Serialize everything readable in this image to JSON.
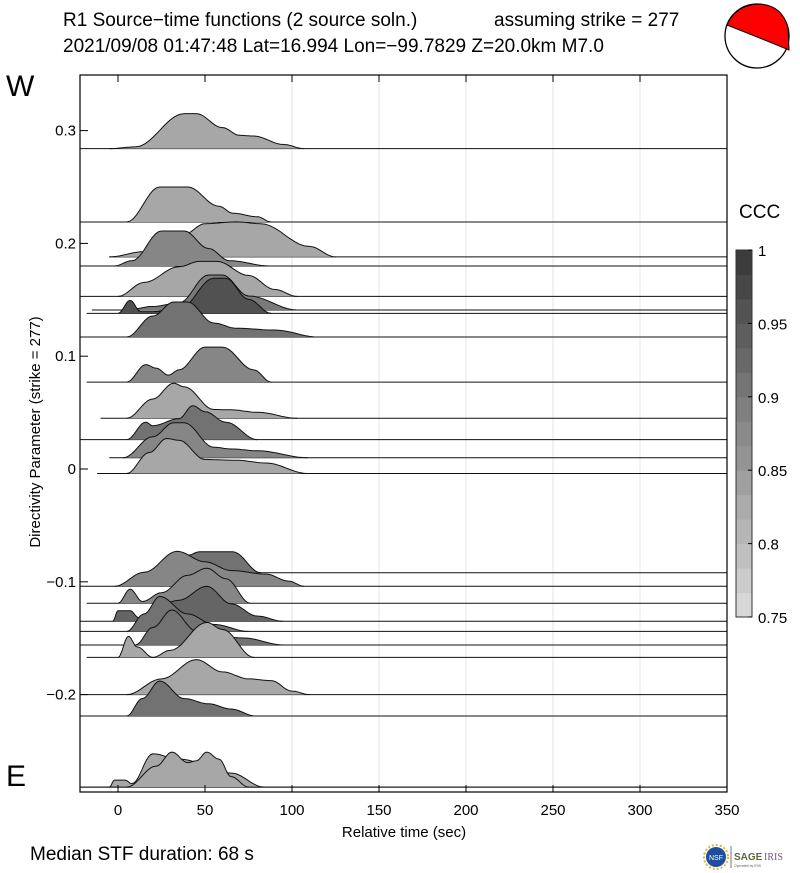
{
  "chart_data": {
    "type": "area",
    "title": "R1 Source−time functions (2 source soln.)",
    "title_right": "assuming strike = 277",
    "subtitle": "2021/09/08 01:47:48  Lat=16.994 Lon=−99.7829  Z=20.0km  M7.0",
    "xlabel": "Relative time (sec)",
    "ylabel": "Directivity Parameter (strike = 277)",
    "xlim": [
      -22,
      350
    ],
    "ylim": [
      -0.287,
      0.35
    ],
    "x_ticks": [
      "0",
      "50",
      "100",
      "150",
      "200",
      "250",
      "300",
      "350"
    ],
    "x_tick_values": [
      0,
      50,
      100,
      150,
      200,
      250,
      300,
      350
    ],
    "y_ticks": [
      "0.3",
      "0.2",
      "0.1",
      "0",
      "−0.1",
      "−0.2"
    ],
    "y_tick_values": [
      0.3,
      0.2,
      0.1,
      0,
      -0.1,
      -0.2
    ],
    "grid": "vertical",
    "top_label": "W",
    "bottom_label": "E",
    "colorbar": {
      "title": "CCC",
      "range": [
        0.75,
        1
      ],
      "ticks": [
        "1",
        "0.95",
        "0.9",
        "0.85",
        "0.8",
        "0.75"
      ],
      "tick_values": [
        1,
        0.95,
        0.9,
        0.85,
        0.8,
        0.75
      ],
      "color_low": "#dcdcdc",
      "color_high": "#373737"
    },
    "note": "Traces: baseline = directivity parameter, shape = [time (s), relative amplitude]",
    "traces": [
      {
        "d": 0.284,
        "from": -22,
        "ccc": 0.83,
        "shape": [
          [
            -5,
            0
          ],
          [
            10,
            0.05
          ],
          [
            38,
            1
          ],
          [
            45,
            1
          ],
          [
            60,
            0.6
          ],
          [
            70,
            0.38
          ],
          [
            78,
            0.36
          ],
          [
            95,
            0.12
          ],
          [
            107,
            0
          ]
        ]
      },
      {
        "d": 0.219,
        "from": -22,
        "ccc": 0.83,
        "shape": [
          [
            5,
            0
          ],
          [
            24,
            1
          ],
          [
            40,
            1
          ],
          [
            58,
            0.45
          ],
          [
            66,
            0.25
          ],
          [
            80,
            0.15
          ],
          [
            88,
            0
          ]
        ]
      },
      {
        "d": 0.188,
        "from": -5,
        "ccc": 0.83,
        "shape": [
          [
            -5,
            0
          ],
          [
            15,
            0.15
          ],
          [
            38,
            0.65
          ],
          [
            50,
            0.95
          ],
          [
            68,
            1
          ],
          [
            82,
            0.95
          ],
          [
            110,
            0.3
          ],
          [
            125,
            0
          ]
        ]
      },
      {
        "d": 0.18,
        "from": -22,
        "ccc": 0.88,
        "shape": [
          [
            -2,
            0
          ],
          [
            8,
            0.15
          ],
          [
            25,
            1
          ],
          [
            38,
            1
          ],
          [
            52,
            0.5
          ],
          [
            64,
            0.15
          ],
          [
            87,
            0
          ]
        ]
      },
      {
        "d": 0.153,
        "from": -22,
        "ccc": 0.83,
        "shape": [
          [
            0,
            0
          ],
          [
            15,
            0.4
          ],
          [
            35,
            0.85
          ],
          [
            47,
            1
          ],
          [
            57,
            1
          ],
          [
            75,
            0.6
          ],
          [
            90,
            0.2
          ],
          [
            103,
            0
          ]
        ]
      },
      {
        "d": 0.141,
        "from": -15,
        "ccc": 0.9,
        "shape": [
          [
            5,
            0
          ],
          [
            20,
            0.1
          ],
          [
            35,
            0.2
          ],
          [
            52,
            1
          ],
          [
            60,
            1
          ],
          [
            75,
            0.4
          ],
          [
            103,
            0
          ]
        ]
      },
      {
        "d": 0.138,
        "from": -18,
        "ccc": 0.96,
        "shape": [
          [
            0,
            0
          ],
          [
            7,
            0.37
          ],
          [
            13,
            0.05
          ],
          [
            20,
            0.05
          ],
          [
            35,
            0.1
          ],
          [
            55,
            1
          ],
          [
            62,
            1
          ],
          [
            75,
            0.4
          ],
          [
            88,
            0
          ]
        ]
      },
      {
        "d": 0.117,
        "from": -22,
        "ccc": 0.91,
        "shape": [
          [
            5,
            0
          ],
          [
            20,
            0.6
          ],
          [
            32,
            1
          ],
          [
            40,
            1
          ],
          [
            55,
            0.4
          ],
          [
            68,
            0.25
          ],
          [
            90,
            0.2
          ],
          [
            115,
            0
          ]
        ]
      },
      {
        "d": 0.077,
        "from": -18,
        "ccc": 0.88,
        "shape": [
          [
            5,
            0
          ],
          [
            16,
            0.5
          ],
          [
            22,
            0.4
          ],
          [
            29,
            0.2
          ],
          [
            35,
            0.35
          ],
          [
            50,
            1
          ],
          [
            60,
            1
          ],
          [
            78,
            0.35
          ],
          [
            88,
            0
          ]
        ]
      },
      {
        "d": 0.045,
        "from": -10,
        "ccc": 0.83,
        "shape": [
          [
            5,
            0
          ],
          [
            20,
            0.55
          ],
          [
            32,
            1
          ],
          [
            38,
            0.9
          ],
          [
            55,
            0.25
          ],
          [
            65,
            0.24
          ],
          [
            80,
            0.17
          ],
          [
            103,
            0
          ]
        ]
      },
      {
        "d": 0.026,
        "from": -22,
        "ccc": 0.91,
        "shape": [
          [
            5,
            0
          ],
          [
            16,
            0.5
          ],
          [
            20,
            0.4
          ],
          [
            35,
            0.6
          ],
          [
            43,
            0.97
          ],
          [
            50,
            0.8
          ],
          [
            62,
            0.5
          ],
          [
            80,
            0
          ]
        ]
      },
      {
        "d": 0.01,
        "from": -5,
        "ccc": 0.88,
        "shape": [
          [
            3,
            0
          ],
          [
            20,
            0.6
          ],
          [
            32,
            1
          ],
          [
            38,
            1
          ],
          [
            55,
            0.3
          ],
          [
            65,
            0.25
          ],
          [
            80,
            0.2
          ],
          [
            109,
            0
          ]
        ]
      },
      {
        "d": -0.004,
        "from": -12,
        "ccc": 0.83,
        "shape": [
          [
            5,
            0
          ],
          [
            18,
            0.6
          ],
          [
            28,
            1
          ],
          [
            35,
            0.95
          ],
          [
            50,
            0.4
          ],
          [
            68,
            0.38
          ],
          [
            85,
            0.3
          ],
          [
            109,
            0
          ]
        ]
      },
      {
        "d": -0.092,
        "from": 27,
        "ccc": 0.91,
        "shape": [
          [
            27,
            0
          ],
          [
            40,
            0.5
          ],
          [
            47,
            0.6
          ],
          [
            66,
            0.6
          ],
          [
            82,
            0
          ]
        ]
      },
      {
        "d": -0.104,
        "from": -22,
        "ccc": 0.88,
        "shape": [
          [
            -2,
            0
          ],
          [
            15,
            0.4
          ],
          [
            34,
            1
          ],
          [
            50,
            0.7
          ],
          [
            65,
            0.45
          ],
          [
            85,
            0.35
          ],
          [
            98,
            0.15
          ],
          [
            107,
            0
          ]
        ]
      },
      {
        "d": -0.119,
        "from": -18,
        "ccc": 0.88,
        "shape": [
          [
            0,
            0
          ],
          [
            7,
            0.4
          ],
          [
            14,
            0.05
          ],
          [
            25,
            0.3
          ],
          [
            40,
            0.8
          ],
          [
            51,
            1
          ],
          [
            62,
            0.7
          ],
          [
            76,
            0
          ]
        ]
      },
      {
        "d": -0.135,
        "from": -22,
        "ccc": 0.93,
        "shape": [
          [
            -3,
            0
          ],
          [
            0,
            0.3
          ],
          [
            7,
            0.3
          ],
          [
            12,
            0.1
          ],
          [
            35,
            0.6
          ],
          [
            51,
            1
          ],
          [
            65,
            0.5
          ],
          [
            80,
            0.15
          ],
          [
            95,
            0
          ]
        ]
      },
      {
        "d": -0.144,
        "from": -22,
        "ccc": 0.91,
        "shape": [
          [
            5,
            0
          ],
          [
            15,
            0.5
          ],
          [
            24,
            1
          ],
          [
            40,
            0.5
          ],
          [
            55,
            0.2
          ],
          [
            75,
            0
          ]
        ]
      },
      {
        "d": -0.156,
        "from": -22,
        "ccc": 0.91,
        "shape": [
          [
            10,
            0
          ],
          [
            20,
            0.5
          ],
          [
            31,
            1
          ],
          [
            45,
            0.4
          ],
          [
            57,
            0.25
          ],
          [
            72,
            0.2
          ],
          [
            95,
            0
          ]
        ]
      },
      {
        "d": -0.167,
        "from": -18,
        "ccc": 0.83,
        "shape": [
          [
            0,
            0
          ],
          [
            6,
            0.6
          ],
          [
            11,
            0.3
          ],
          [
            20,
            0
          ],
          [
            30,
            0.2
          ],
          [
            51,
            1
          ],
          [
            60,
            0.8
          ],
          [
            78,
            0
          ]
        ]
      },
      {
        "d": -0.2,
        "from": -22,
        "ccc": 0.83,
        "shape": [
          [
            5,
            0
          ],
          [
            25,
            0.45
          ],
          [
            45,
            1
          ],
          [
            60,
            0.65
          ],
          [
            75,
            0.45
          ],
          [
            88,
            0.4
          ],
          [
            100,
            0.1
          ],
          [
            110,
            0
          ]
        ]
      },
      {
        "d": -0.219,
        "from": -22,
        "ccc": 0.91,
        "shape": [
          [
            5,
            0
          ],
          [
            14,
            0.5
          ],
          [
            24,
            1
          ],
          [
            38,
            0.5
          ],
          [
            52,
            0.35
          ],
          [
            65,
            0.2
          ],
          [
            79,
            0
          ]
        ]
      },
      {
        "d": -0.282,
        "from": -22,
        "ccc": 0.83,
        "shape": [
          [
            -5,
            0
          ],
          [
            -2,
            0.2
          ],
          [
            4,
            0.2
          ],
          [
            8,
            0.1
          ],
          [
            20,
            0.95
          ],
          [
            35,
            0.8
          ],
          [
            65,
            0.4
          ],
          [
            84,
            0
          ]
        ]
      },
      {
        "d": -0.282,
        "from": -22,
        "ccc": 0.83,
        "shape": [
          [
            5,
            0
          ],
          [
            22,
            0.6
          ],
          [
            31,
            1
          ],
          [
            40,
            0.7
          ],
          [
            45,
            0.75
          ],
          [
            51,
            1
          ],
          [
            58,
            0.8
          ],
          [
            65,
            0.3
          ],
          [
            75,
            0
          ]
        ]
      }
    ]
  },
  "footer": {
    "median": "Median STF duration: 68 s",
    "logo": "NSF SAGE IRIS Operated by IRIS"
  },
  "beachball": {
    "fill": "#ff0000"
  }
}
